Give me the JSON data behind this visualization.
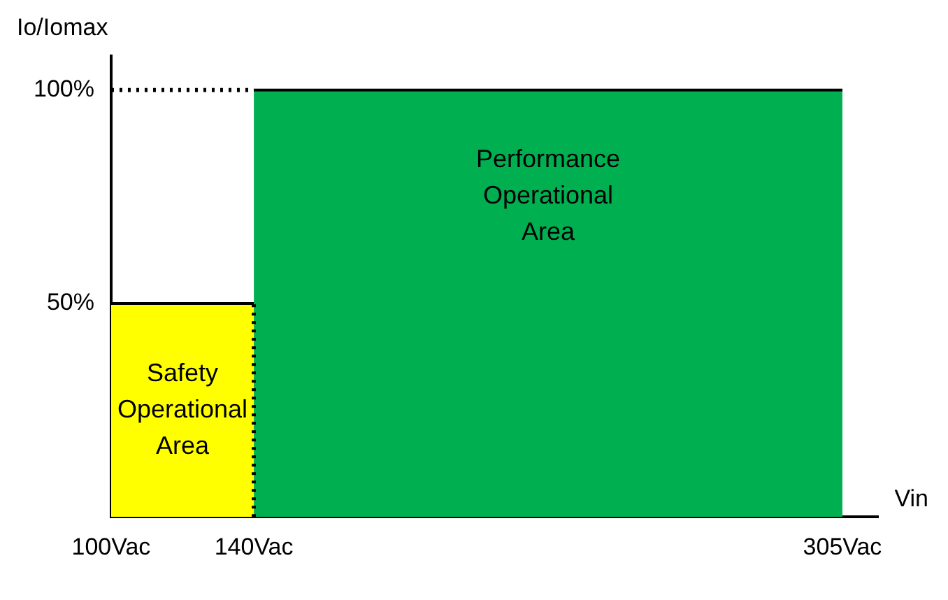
{
  "chart_data": {
    "type": "area",
    "xlabel": "Vin",
    "ylabel": "Io/Iomax",
    "xlim": [
      100,
      315
    ],
    "xticks": [
      {
        "value": 100,
        "label": "100Vac"
      },
      {
        "value": 140,
        "label": "140Vac"
      },
      {
        "value": 305,
        "label": "305Vac"
      }
    ],
    "ylim": [
      0,
      108
    ],
    "yticks": [
      {
        "value": 50,
        "label": "50%"
      },
      {
        "value": 100,
        "label": "100%"
      }
    ],
    "grid": false,
    "legend": false,
    "series": [
      {
        "type": "area",
        "color": "#ffff00",
        "x": [
          100,
          140
        ],
        "values": [
          50,
          50
        ]
      },
      {
        "type": "area",
        "color": "#00b050",
        "x": [
          140,
          305
        ],
        "values": [
          100,
          100
        ]
      },
      {
        "type": "line",
        "color": "#000000",
        "line_style": "dotted",
        "x": [
          100,
          140
        ],
        "values": [
          100,
          100
        ]
      },
      {
        "type": "line",
        "color": "#000000",
        "line_style": "dotted",
        "x": [
          140,
          140
        ],
        "values": [
          0,
          50
        ]
      }
    ],
    "annotations": [
      "Safety Operational Area",
      "Performance Operational Area"
    ]
  }
}
